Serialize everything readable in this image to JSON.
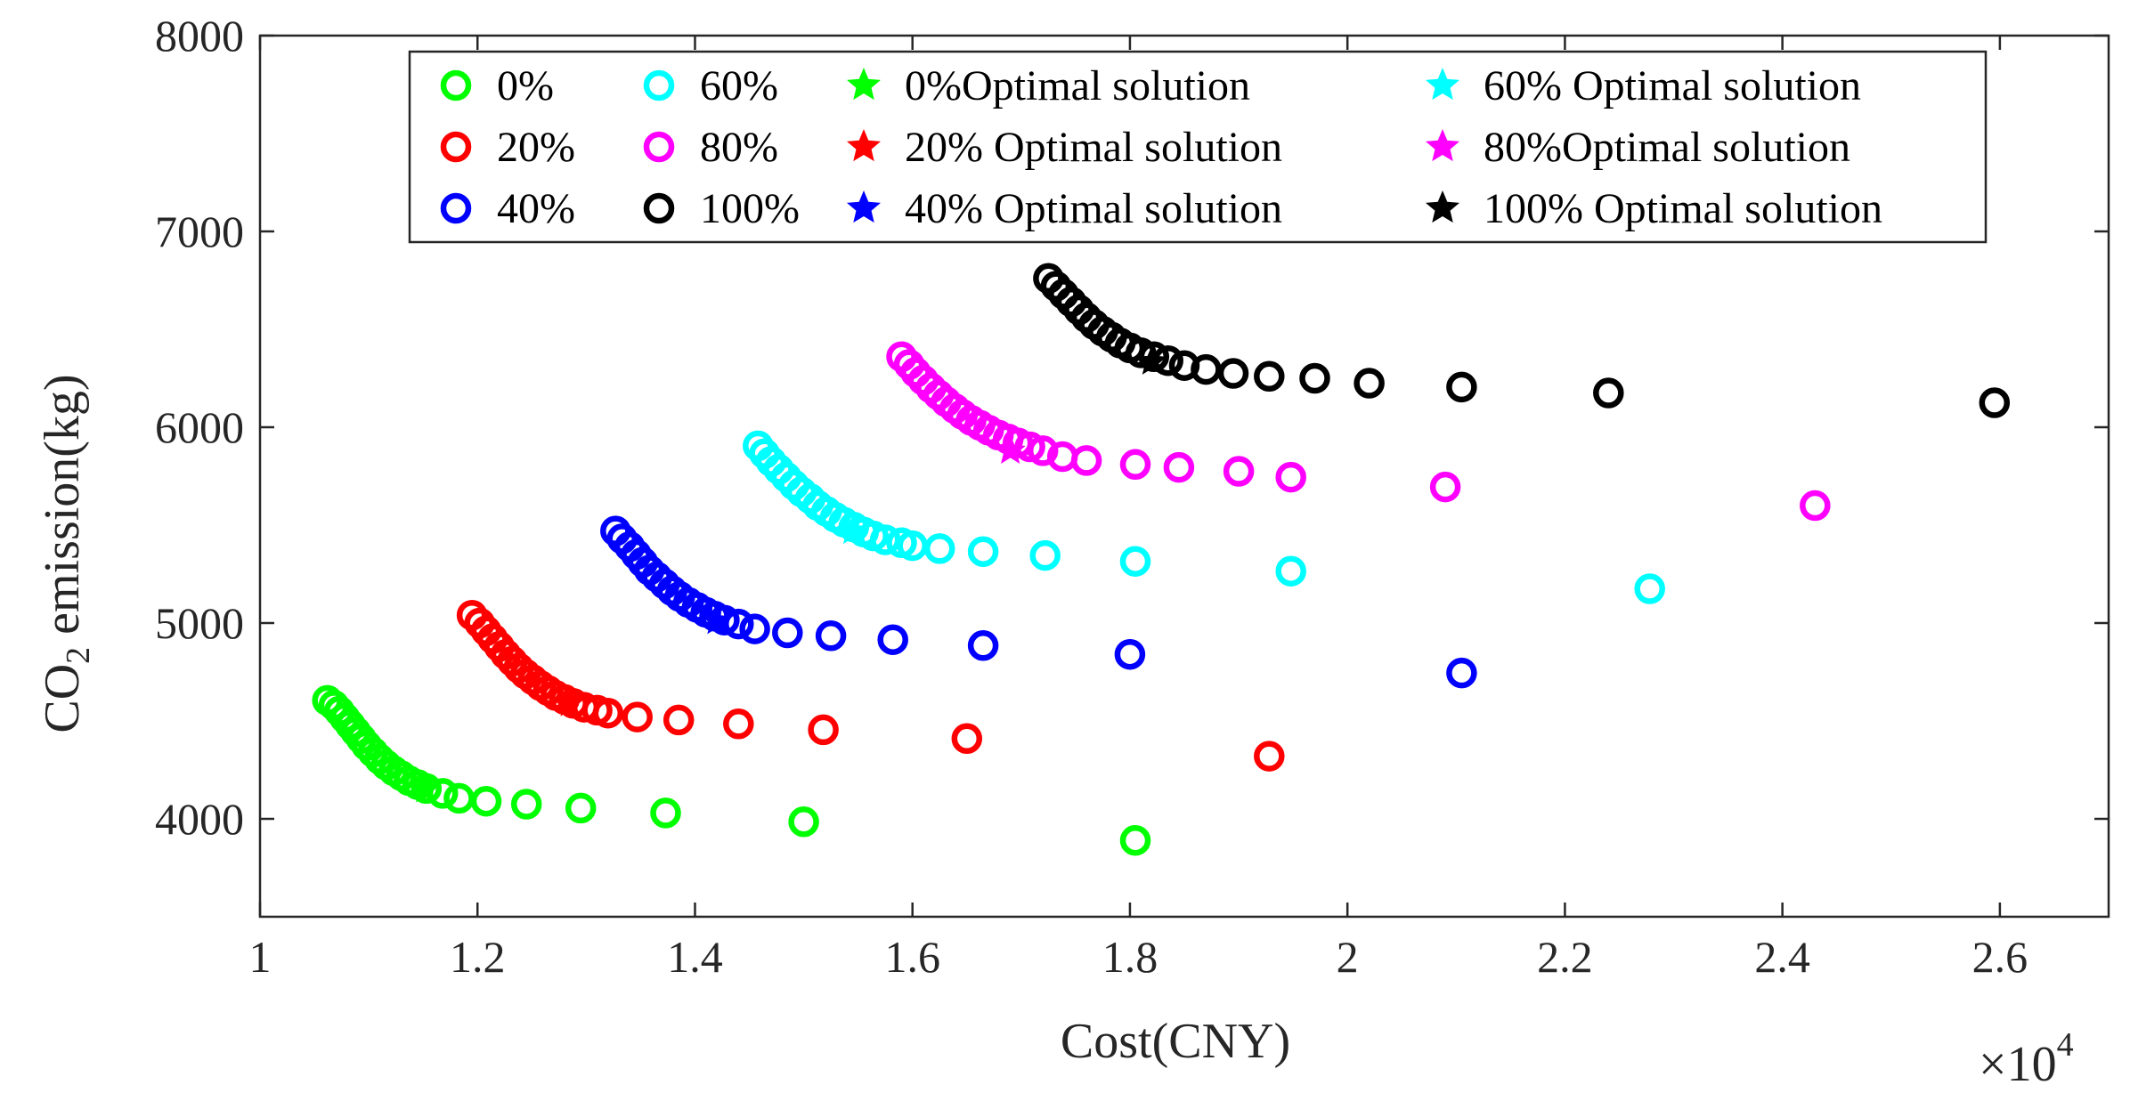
{
  "chart_data": {
    "type": "scatter",
    "xlabel": "Cost(CNY)",
    "ylabel_main": "CO",
    "ylabel_sub": "2",
    "ylabel_rest": " emission(kg)",
    "x_multiplier": {
      "base": "×10",
      "exp": "4"
    },
    "xlim": [
      1.0,
      2.7
    ],
    "ylim": [
      3500,
      8000
    ],
    "x_ticks": [
      1.0,
      1.2,
      1.4,
      1.6,
      1.8,
      2.0,
      2.2,
      2.4,
      2.6
    ],
    "x_tick_labels": [
      "1",
      "1.2",
      "1.4",
      "1.6",
      "1.8",
      "2",
      "2.2",
      "2.4",
      "2.6"
    ],
    "y_ticks": [
      4000,
      5000,
      6000,
      7000,
      8000
    ],
    "y_tick_labels": [
      "4000",
      "5000",
      "6000",
      "7000",
      "8000"
    ],
    "legend_placement": "top",
    "series": [
      {
        "name": "0%",
        "color": "#00ff00",
        "points": [
          [
            1.062,
            4605
          ],
          [
            1.068,
            4580
          ],
          [
            1.073,
            4550
          ],
          [
            1.078,
            4515
          ],
          [
            1.083,
            4480
          ],
          [
            1.088,
            4445
          ],
          [
            1.093,
            4410
          ],
          [
            1.098,
            4375
          ],
          [
            1.104,
            4340
          ],
          [
            1.11,
            4305
          ],
          [
            1.116,
            4275
          ],
          [
            1.123,
            4245
          ],
          [
            1.13,
            4220
          ],
          [
            1.137,
            4195
          ],
          [
            1.145,
            4175
          ],
          [
            1.153,
            4155
          ],
          [
            1.168,
            4130
          ],
          [
            1.183,
            4105
          ],
          [
            1.208,
            4090
          ],
          [
            1.245,
            4075
          ],
          [
            1.295,
            4055
          ],
          [
            1.373,
            4030
          ],
          [
            1.5,
            3985
          ],
          [
            1.805,
            3890
          ]
        ],
        "optimal": [
          1.152,
          4150
        ]
      },
      {
        "name": "20%",
        "color": "#ff0000",
        "points": [
          [
            1.195,
            5040
          ],
          [
            1.202,
            5000
          ],
          [
            1.208,
            4960
          ],
          [
            1.214,
            4920
          ],
          [
            1.22,
            4880
          ],
          [
            1.226,
            4840
          ],
          [
            1.232,
            4805
          ],
          [
            1.238,
            4770
          ],
          [
            1.244,
            4740
          ],
          [
            1.251,
            4710
          ],
          [
            1.258,
            4680
          ],
          [
            1.265,
            4655
          ],
          [
            1.272,
            4630
          ],
          [
            1.28,
            4610
          ],
          [
            1.288,
            4590
          ],
          [
            1.298,
            4570
          ],
          [
            1.31,
            4555
          ],
          [
            1.32,
            4540
          ],
          [
            1.347,
            4520
          ],
          [
            1.385,
            4505
          ],
          [
            1.44,
            4485
          ],
          [
            1.518,
            4455
          ],
          [
            1.65,
            4410
          ],
          [
            1.928,
            4320
          ]
        ],
        "optimal": [
          1.285,
          4590
        ]
      },
      {
        "name": "40%",
        "color": "#0000ff",
        "points": [
          [
            1.327,
            5470
          ],
          [
            1.333,
            5430
          ],
          [
            1.34,
            5390
          ],
          [
            1.346,
            5350
          ],
          [
            1.352,
            5310
          ],
          [
            1.358,
            5270
          ],
          [
            1.365,
            5235
          ],
          [
            1.372,
            5200
          ],
          [
            1.379,
            5165
          ],
          [
            1.386,
            5135
          ],
          [
            1.394,
            5105
          ],
          [
            1.402,
            5080
          ],
          [
            1.41,
            5055
          ],
          [
            1.418,
            5035
          ],
          [
            1.427,
            5015
          ],
          [
            1.44,
            4995
          ],
          [
            1.455,
            4970
          ],
          [
            1.485,
            4950
          ],
          [
            1.525,
            4935
          ],
          [
            1.582,
            4915
          ],
          [
            1.665,
            4885
          ],
          [
            1.8,
            4840
          ],
          [
            2.105,
            4745
          ]
        ],
        "optimal": [
          1.42,
          5010
        ]
      },
      {
        "name": "60%",
        "color": "#00ffff",
        "points": [
          [
            1.458,
            5905
          ],
          [
            1.464,
            5865
          ],
          [
            1.47,
            5825
          ],
          [
            1.477,
            5785
          ],
          [
            1.484,
            5745
          ],
          [
            1.491,
            5705
          ],
          [
            1.498,
            5670
          ],
          [
            1.506,
            5635
          ],
          [
            1.513,
            5600
          ],
          [
            1.521,
            5570
          ],
          [
            1.529,
            5540
          ],
          [
            1.537,
            5515
          ],
          [
            1.546,
            5490
          ],
          [
            1.555,
            5465
          ],
          [
            1.564,
            5445
          ],
          [
            1.575,
            5425
          ],
          [
            1.59,
            5410
          ],
          [
            1.6,
            5395
          ],
          [
            1.625,
            5380
          ],
          [
            1.665,
            5365
          ],
          [
            1.722,
            5345
          ],
          [
            1.805,
            5315
          ],
          [
            1.948,
            5265
          ],
          [
            2.278,
            5175
          ]
        ],
        "optimal": [
          1.545,
          5470
        ]
      },
      {
        "name": "80%",
        "color": "#ff00ff",
        "points": [
          [
            1.59,
            6360
          ],
          [
            1.597,
            6320
          ],
          [
            1.603,
            6280
          ],
          [
            1.61,
            6240
          ],
          [
            1.617,
            6200
          ],
          [
            1.624,
            6165
          ],
          [
            1.631,
            6130
          ],
          [
            1.639,
            6095
          ],
          [
            1.646,
            6065
          ],
          [
            1.654,
            6035
          ],
          [
            1.662,
            6010
          ],
          [
            1.67,
            5985
          ],
          [
            1.679,
            5960
          ],
          [
            1.688,
            5940
          ],
          [
            1.697,
            5920
          ],
          [
            1.708,
            5900
          ],
          [
            1.72,
            5880
          ],
          [
            1.738,
            5850
          ],
          [
            1.76,
            5830
          ],
          [
            1.805,
            5810
          ],
          [
            1.845,
            5795
          ],
          [
            1.9,
            5775
          ],
          [
            1.948,
            5745
          ],
          [
            2.09,
            5695
          ],
          [
            2.43,
            5600
          ]
        ],
        "optimal": [
          1.69,
          5880
        ]
      },
      {
        "name": "100%",
        "color": "#000000",
        "points": [
          [
            1.725,
            6760
          ],
          [
            1.732,
            6720
          ],
          [
            1.739,
            6680
          ],
          [
            1.746,
            6640
          ],
          [
            1.753,
            6600
          ],
          [
            1.76,
            6560
          ],
          [
            1.767,
            6525
          ],
          [
            1.775,
            6490
          ],
          [
            1.783,
            6460
          ],
          [
            1.791,
            6430
          ],
          [
            1.8,
            6405
          ],
          [
            1.81,
            6380
          ],
          [
            1.822,
            6360
          ],
          [
            1.835,
            6340
          ],
          [
            1.85,
            6315
          ],
          [
            1.87,
            6295
          ],
          [
            1.895,
            6275
          ],
          [
            1.928,
            6260
          ],
          [
            1.97,
            6250
          ],
          [
            2.02,
            6225
          ],
          [
            2.105,
            6205
          ],
          [
            2.24,
            6175
          ],
          [
            2.595,
            6125
          ]
        ],
        "optimal": [
          1.82,
          6335
        ]
      }
    ],
    "legend": [
      {
        "label": "0%",
        "type": "circle",
        "color": "#00ff00"
      },
      {
        "label": "60%",
        "type": "circle",
        "color": "#00ffff"
      },
      {
        "label": "0%Optimal solution",
        "type": "star",
        "color": "#00ff00"
      },
      {
        "label": "60% Optimal solution",
        "type": "star",
        "color": "#00ffff"
      },
      {
        "label": "20%",
        "type": "circle",
        "color": "#ff0000"
      },
      {
        "label": "80%",
        "type": "circle",
        "color": "#ff00ff"
      },
      {
        "label": "20% Optimal solution",
        "type": "star",
        "color": "#ff0000"
      },
      {
        "label": "80%Optimal solution",
        "type": "star",
        "color": "#ff00ff"
      },
      {
        "label": "40%",
        "type": "circle",
        "color": "#0000ff"
      },
      {
        "label": "100%",
        "type": "circle",
        "color": "#000000"
      },
      {
        "label": "40% Optimal solution",
        "type": "star",
        "color": "#0000ff"
      },
      {
        "label": "100% Optimal solution",
        "type": "star",
        "color": "#000000"
      }
    ]
  }
}
